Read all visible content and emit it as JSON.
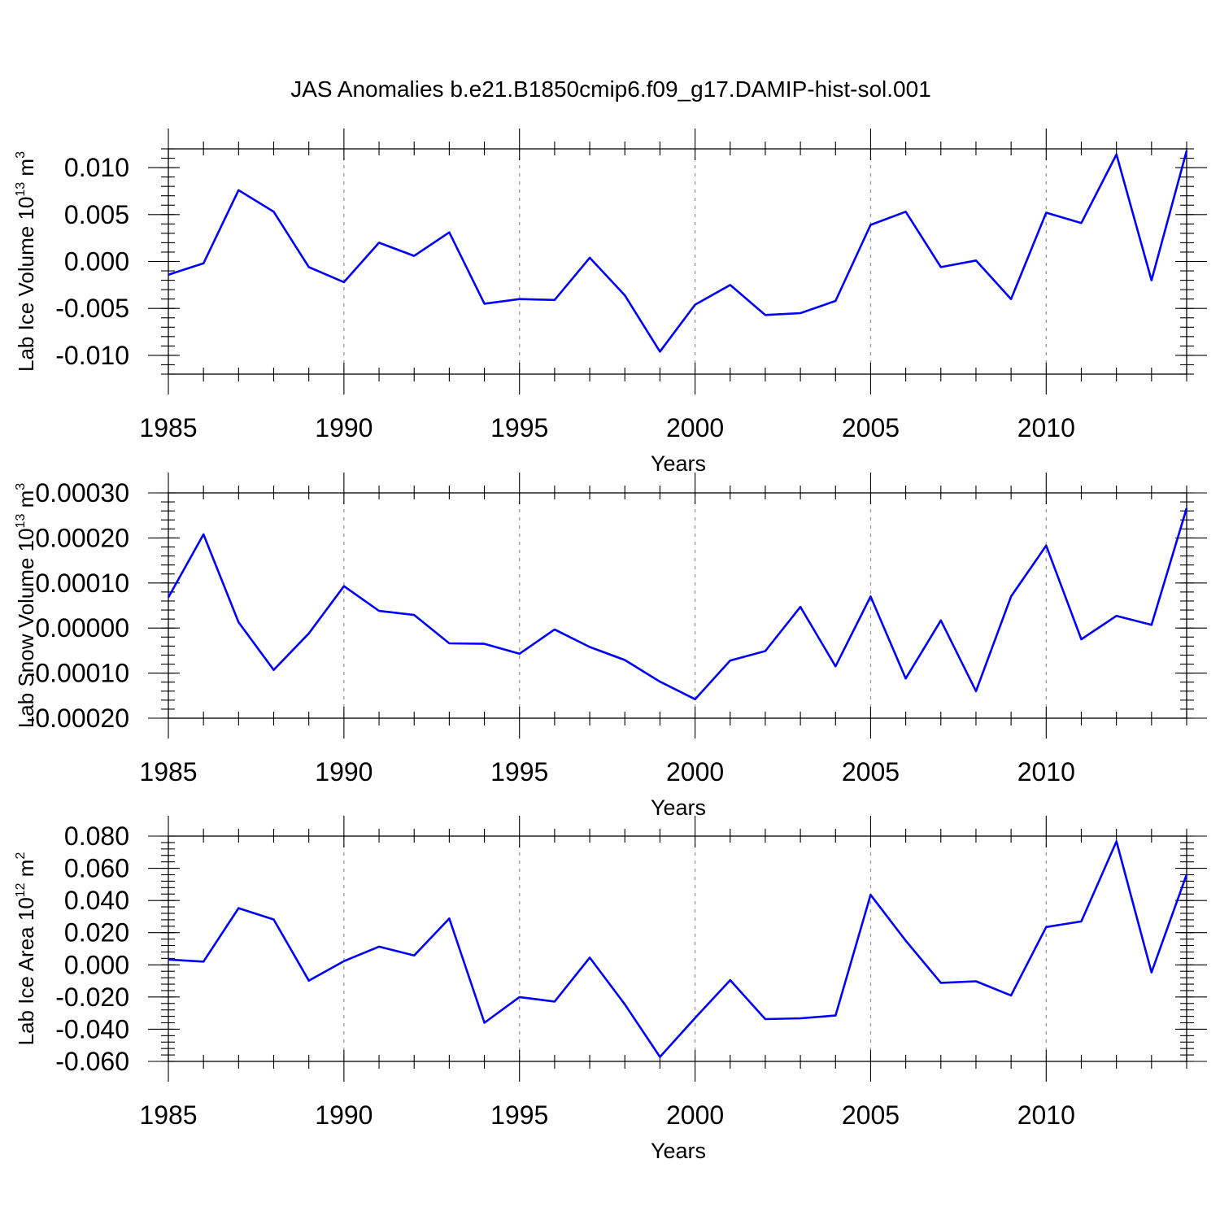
{
  "chart_data": {
    "type": "line",
    "title": "JAS Anomalies b.e21.B1850cmip6.f09_g17.DAMIP-hist-sol.001",
    "line_color": "#0000ff",
    "grid_color": "#9a9a9a",
    "x": [
      1985,
      1986,
      1987,
      1988,
      1989,
      1990,
      1991,
      1992,
      1993,
      1994,
      1995,
      1996,
      1997,
      1998,
      1999,
      2000,
      2001,
      2002,
      2003,
      2004,
      2005,
      2006,
      2007,
      2008,
      2009,
      2010,
      2011,
      2012,
      2013,
      2014
    ],
    "xlim": [
      1985,
      2014
    ],
    "xticks": [
      1985,
      1990,
      1995,
      2000,
      2005,
      2010
    ],
    "vertical_grid": [
      1990,
      1995,
      2000,
      2005,
      2010
    ],
    "panels": [
      {
        "name": "ice-volume",
        "xlabel": "Years",
        "ylabel": "Lab Ice Volume 10",
        "ylabel_exp": "13",
        "ylabel_unit": " m",
        "ylabel_unit_exp": "3",
        "ylim": [
          -0.012,
          0.012
        ],
        "yticks": [
          -0.01,
          -0.005,
          0.0,
          0.005,
          0.01
        ],
        "ytick_labels": [
          "-0.010",
          "-0.005",
          "0.000",
          "0.005",
          "0.010"
        ],
        "yminor_step": 0.001,
        "values": [
          -0.0014,
          -0.0002,
          0.0076,
          0.0053,
          -0.0006,
          -0.0022,
          0.002,
          0.0006,
          0.0031,
          -0.0045,
          -0.004,
          -0.0041,
          0.0004,
          -0.0036,
          -0.0096,
          -0.0046,
          -0.0025,
          -0.0057,
          -0.0055,
          -0.0042,
          0.0039,
          0.0053,
          -0.0006,
          0.0001,
          -0.004,
          0.0052,
          0.0041,
          0.0114,
          -0.002,
          0.0118
        ]
      },
      {
        "name": "snow-volume",
        "xlabel": "Years",
        "ylabel": "Lab Snow Volume 10",
        "ylabel_exp": "13",
        "ylabel_unit": " m",
        "ylabel_unit_exp": "3",
        "ylim": [
          -0.0002,
          0.0003
        ],
        "yticks": [
          -0.0002,
          -0.0001,
          0.0,
          0.0001,
          0.0002,
          0.0003
        ],
        "ytick_labels": [
          "-0.00020",
          "-0.00010",
          "0.00000",
          "0.00010",
          "0.00020",
          "0.00030"
        ],
        "yminor_step": 2e-05,
        "values": [
          6.8e-05,
          0.000208,
          1.3e-05,
          -9.3e-05,
          -1.2e-05,
          9.3e-05,
          3.8e-05,
          2.9e-05,
          -3.4e-05,
          -3.5e-05,
          -5.7e-05,
          -3e-06,
          -4.2e-05,
          -7.1e-05,
          -0.000119,
          -0.000158,
          -7.2e-05,
          -5.1e-05,
          4.7e-05,
          -8.5e-05,
          7e-05,
          -0.000112,
          1.7e-05,
          -0.00014,
          7e-05,
          0.000183,
          -2.5e-05,
          2.7e-05,
          7e-06,
          0.000266
        ]
      },
      {
        "name": "ice-area",
        "xlabel": "Years",
        "ylabel": "Lab Ice Area 10",
        "ylabel_exp": "12",
        "ylabel_unit": " m",
        "ylabel_unit_exp": "2",
        "ylim": [
          -0.06,
          0.08
        ],
        "yticks": [
          -0.06,
          -0.04,
          -0.02,
          0.0,
          0.02,
          0.04,
          0.06,
          0.08
        ],
        "ytick_labels": [
          "-0.060",
          "-0.040",
          "-0.020",
          "0.000",
          "0.020",
          "0.040",
          "0.060",
          "0.080"
        ],
        "yminor_step": 0.004,
        "values": [
          0.0033,
          0.002,
          0.0352,
          0.0282,
          -0.0098,
          0.0023,
          0.0113,
          0.0058,
          0.0288,
          -0.036,
          -0.02,
          -0.0228,
          0.0045,
          -0.0245,
          -0.0572,
          -0.033,
          -0.0095,
          -0.0337,
          -0.0332,
          -0.0315,
          0.0435,
          0.015,
          -0.0112,
          -0.0102,
          -0.019,
          0.0235,
          0.027,
          0.0767,
          -0.0047,
          0.0562
        ]
      }
    ]
  }
}
